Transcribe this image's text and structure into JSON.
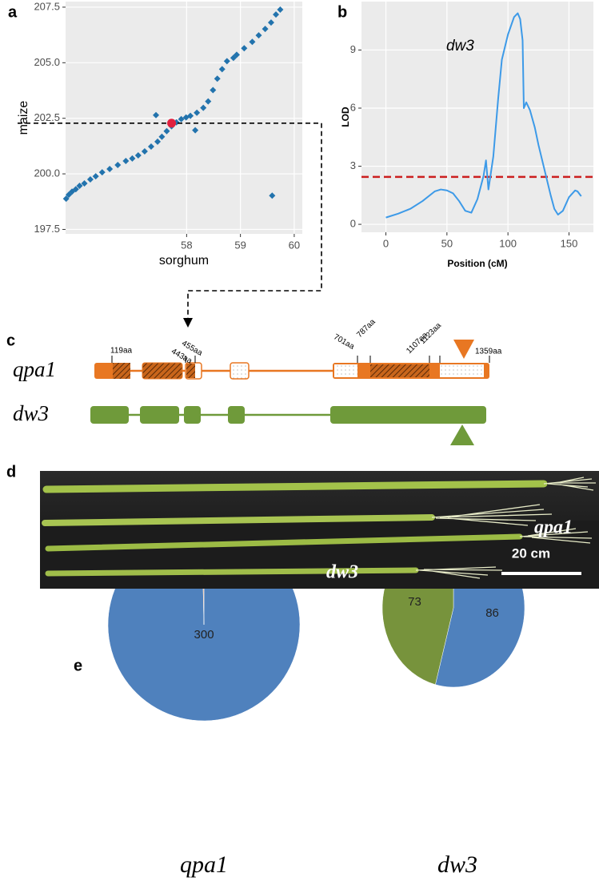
{
  "panel_labels": [
    "a",
    "b",
    "c",
    "d",
    "e"
  ],
  "chart_data": [
    {
      "type": "scatter",
      "x_label": "sorghum",
      "y_label": "maize",
      "color": "#2273ad",
      "background": "#ebebeb",
      "grid": true,
      "x": [
        55.76,
        55.81,
        55.87,
        55.94,
        56.01,
        56.1,
        56.21,
        56.31,
        56.43,
        56.57,
        56.72,
        56.87,
        56.99,
        57.1,
        57.22,
        57.34,
        57.46,
        57.54,
        57.63,
        57.72,
        57.81,
        57.9,
        57.99,
        58.07,
        58.19,
        58.31,
        58.4,
        58.49,
        58.57,
        58.66,
        58.75,
        58.87,
        58.93,
        59.07,
        59.22,
        59.34,
        59.46,
        59.57,
        59.66,
        59.74,
        59.59,
        57.43,
        58.16
      ],
      "y": [
        198.88,
        199.06,
        199.2,
        199.31,
        199.46,
        199.57,
        199.75,
        199.89,
        200.07,
        200.22,
        200.4,
        200.58,
        200.69,
        200.83,
        201.01,
        201.23,
        201.45,
        201.67,
        201.92,
        202.14,
        202.32,
        202.46,
        202.54,
        202.61,
        202.75,
        202.97,
        203.26,
        203.77,
        204.28,
        204.71,
        205.07,
        205.22,
        205.36,
        205.65,
        205.94,
        206.23,
        206.52,
        206.81,
        207.17,
        207.39,
        199.02,
        202.64,
        201.96
      ],
      "highlight": {
        "x": 57.72,
        "y": 202.28,
        "color": "#e0213f"
      },
      "xlim": [
        55.75,
        60.15
      ],
      "ylim": [
        197.3,
        207.75
      ],
      "xticks": [
        58,
        59,
        60
      ],
      "yticks": [
        197.5,
        {
          "value": 200,
          "label": "200.0"
        },
        202.5,
        {
          "value": 205,
          "label": "205.0"
        },
        207.5
      ]
    },
    {
      "type": "line",
      "annotation": "dw3",
      "x_label": "Position (cM)",
      "y_label": "LOD",
      "background": "#ebebeb",
      "grid": true,
      "x": [
        0,
        10,
        20,
        30,
        40,
        45,
        50,
        55,
        60,
        65,
        70,
        75,
        80,
        82,
        84,
        88,
        92,
        95,
        100,
        105,
        108,
        110,
        112,
        113,
        115,
        118,
        122,
        125,
        130,
        135,
        138,
        141,
        145,
        150,
        155,
        157,
        160
      ],
      "series": [
        {
          "color": "#3d9ae8",
          "values": [
            0.35,
            0.55,
            0.8,
            1.2,
            1.7,
            1.8,
            1.75,
            1.6,
            1.2,
            0.7,
            0.6,
            1.3,
            2.5,
            3.3,
            1.8,
            3.5,
            6.5,
            8.5,
            9.8,
            10.7,
            10.9,
            10.6,
            9.5,
            6.0,
            6.3,
            5.9,
            5.0,
            4.1,
            2.8,
            1.5,
            0.8,
            0.5,
            0.7,
            1.4,
            1.75,
            1.7,
            1.45
          ]
        }
      ],
      "threshold": 2.45,
      "threshold_color": "#cc1f1f",
      "xlim": [
        -20,
        170
      ],
      "ylim": [
        -0.41,
        11.5
      ],
      "xticks": [
        0,
        50,
        100,
        150
      ],
      "yticks": [
        0,
        3,
        6,
        9
      ]
    },
    {
      "type": "pie",
      "title": "qpa1",
      "values": [
        300,
        1
      ],
      "colors": [
        "#4f81bd",
        "#e07b39"
      ]
    },
    {
      "type": "pie",
      "title": "dw3",
      "values": [
        86,
        73
      ],
      "colors": [
        "#4f81bd",
        "#77933c"
      ]
    }
  ],
  "gene_diagram": {
    "genes": [
      "qpa1",
      "dw3"
    ],
    "positions": [
      "119aa",
      "443aa",
      "455aa",
      "701aa",
      "787aa",
      "1107aa",
      "1123aa",
      "1359aa"
    ]
  },
  "photo": {
    "labels": [
      "qpa1",
      "dw3"
    ],
    "scale_bar": "20 cm"
  }
}
